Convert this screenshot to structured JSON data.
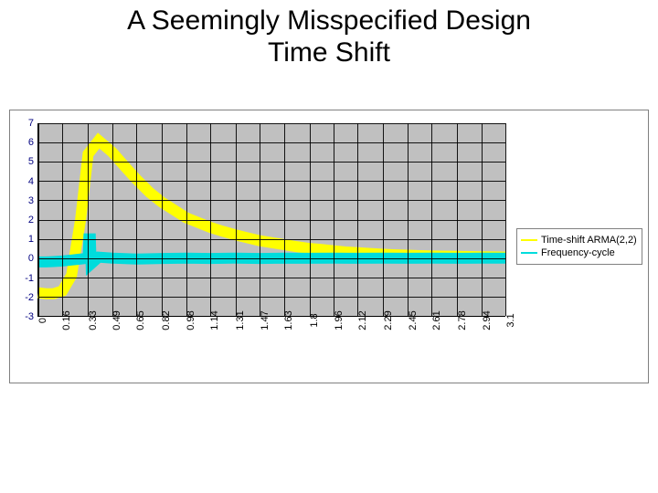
{
  "title": "A Seemingly Misspecified Design\nTime Shift",
  "chart": {
    "type": "line",
    "background_color": "#c0c0c0",
    "grid_color": "#000000",
    "axis_color": "#000000",
    "ylim": [
      -3,
      7
    ],
    "yticks": [
      -3,
      -2,
      -1,
      0,
      1,
      2,
      3,
      4,
      5,
      6,
      7
    ],
    "ytick_color": "#000080",
    "ytick_fontsize": 11,
    "xlim": [
      0,
      3.1
    ],
    "xticks": [
      0,
      0.16,
      0.33,
      0.49,
      0.65,
      0.82,
      0.98,
      1.14,
      1.31,
      1.47,
      1.63,
      1.8,
      1.96,
      2.12,
      2.29,
      2.45,
      2.61,
      2.78,
      2.94,
      3.1
    ],
    "xtick_rotation": -90,
    "xtick_fontsize": 11,
    "series": [
      {
        "name": "Time-shift ARMA(2,2)",
        "color": "#ffff00",
        "line_width": 2,
        "x": [
          0,
          0.05,
          0.1,
          0.16,
          0.22,
          0.28,
          0.33,
          0.4,
          0.49,
          0.58,
          0.65,
          0.74,
          0.82,
          0.9,
          0.98,
          1.06,
          1.14,
          1.22,
          1.31,
          1.39,
          1.47,
          1.55,
          1.63,
          1.71,
          1.8,
          1.88,
          1.96,
          2.04,
          2.12,
          2.2,
          2.29,
          2.37,
          2.45,
          2.53,
          2.61,
          2.7,
          2.78,
          2.86,
          2.94,
          3.02,
          3.1
        ],
        "y": [
          -1.8,
          -1.85,
          -1.85,
          -1.7,
          -0.9,
          2.0,
          5.4,
          6.1,
          5.5,
          4.7,
          4.1,
          3.4,
          2.9,
          2.5,
          2.1,
          1.85,
          1.6,
          1.4,
          1.2,
          1.05,
          0.9,
          0.8,
          0.7,
          0.6,
          0.5,
          0.45,
          0.38,
          0.32,
          0.28,
          0.24,
          0.2,
          0.17,
          0.15,
          0.13,
          0.11,
          0.1,
          0.09,
          0.08,
          0.07,
          0.06,
          0.05
        ]
      },
      {
        "name": "Frequency-cycle",
        "color": "#00dcdc",
        "line_width": 2,
        "x": [
          0,
          0.05,
          0.1,
          0.16,
          0.22,
          0.28,
          0.33,
          0.335,
          0.345,
          0.35,
          0.4,
          0.49,
          0.65,
          0.82,
          0.98,
          1.14,
          1.31,
          1.47,
          1.63,
          1.8,
          1.96,
          2.12,
          2.29,
          2.45,
          2.61,
          2.78,
          2.94,
          3.1
        ],
        "y": [
          -0.2,
          -0.2,
          -0.18,
          -0.15,
          -0.1,
          -0.05,
          0.0,
          1.0,
          1.0,
          -0.3,
          0.05,
          0.0,
          -0.05,
          -0.02,
          0.0,
          -0.02,
          0.0,
          -0.02,
          0.0,
          -0.01,
          0.0,
          -0.01,
          0.0,
          -0.01,
          0.0,
          -0.01,
          0.0,
          0.0
        ]
      }
    ],
    "legend": {
      "position": "right",
      "border_color": "#808080",
      "fontsize": 11,
      "items": [
        {
          "label": "Time-shift ARMA(2,2)",
          "color": "#ffff00"
        },
        {
          "label": "Frequency-cycle",
          "color": "#00dcdc"
        }
      ]
    }
  }
}
